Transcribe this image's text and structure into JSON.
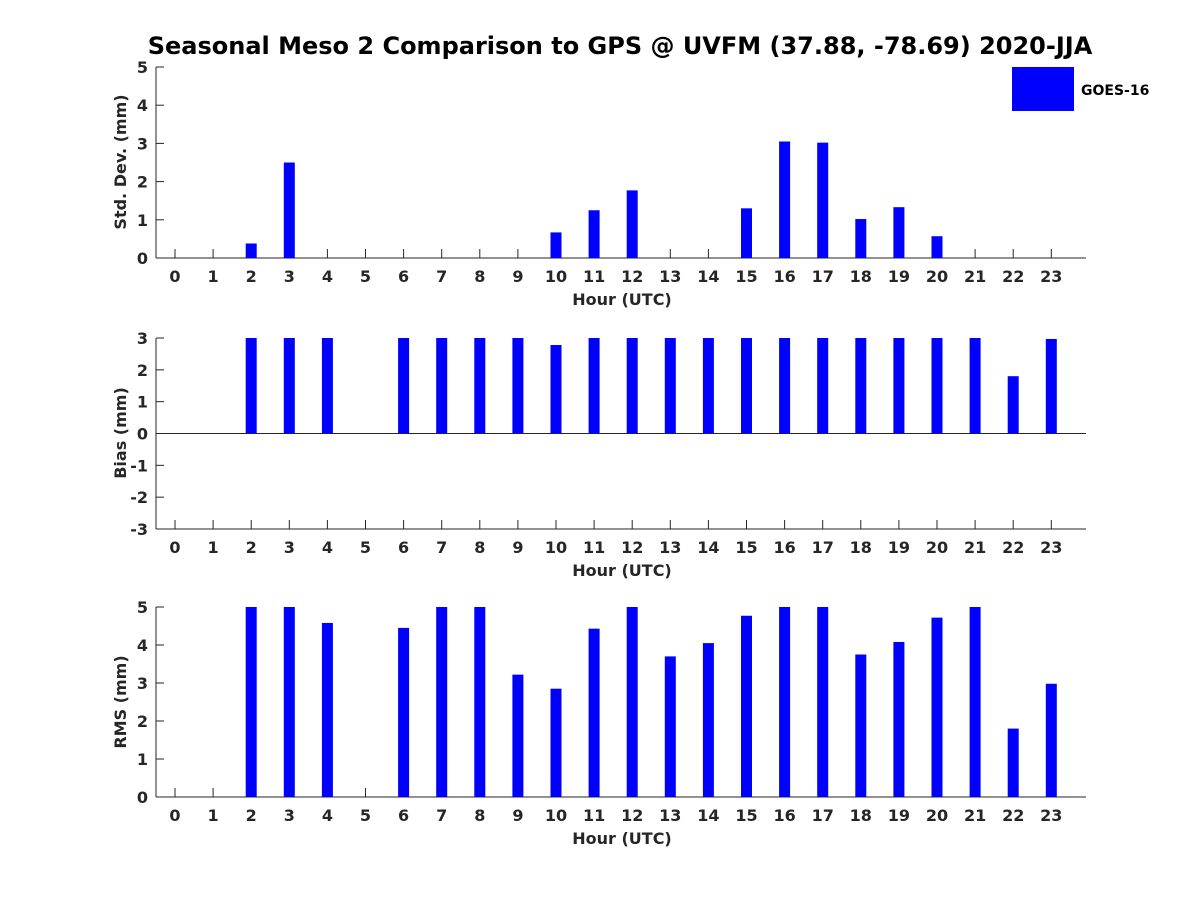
{
  "chart_data": {
    "title": "Seasonal Meso 2 Comparison to GPS @ UVFM (37.88, -78.69) 2020-JJA",
    "legend": {
      "label": "GOES-16",
      "color": "#0000ff",
      "position": "top-right"
    },
    "panels": [
      {
        "type": "bar",
        "xlabel": "Hour (UTC)",
        "ylabel": "Std. Dev. (mm)",
        "ylim": [
          0,
          5
        ],
        "yticks": [
          "0",
          "1",
          "2",
          "3",
          "4",
          "5"
        ],
        "categories": [
          "0",
          "1",
          "2",
          "3",
          "4",
          "5",
          "6",
          "7",
          "8",
          "9",
          "10",
          "11",
          "12",
          "13",
          "14",
          "15",
          "16",
          "17",
          "18",
          "19",
          "20",
          "21",
          "22",
          "23"
        ],
        "values": [
          null,
          null,
          0.38,
          2.5,
          null,
          null,
          null,
          null,
          null,
          null,
          0.67,
          1.25,
          1.77,
          null,
          null,
          1.3,
          3.05,
          3.02,
          1.02,
          1.33,
          0.57,
          null,
          null,
          null
        ]
      },
      {
        "type": "bar",
        "xlabel": "Hour (UTC)",
        "ylabel": "Bias (mm)",
        "ylim": [
          -3,
          3
        ],
        "yticks": [
          "-3",
          "-2",
          "-1",
          "0",
          "1",
          "2",
          "3"
        ],
        "categories": [
          "0",
          "1",
          "2",
          "3",
          "4",
          "5",
          "6",
          "7",
          "8",
          "9",
          "10",
          "11",
          "12",
          "13",
          "14",
          "15",
          "16",
          "17",
          "18",
          "19",
          "20",
          "21",
          "22",
          "23"
        ],
        "values": [
          null,
          null,
          3,
          3,
          3,
          null,
          3,
          3,
          3,
          3,
          2.78,
          3,
          3,
          3,
          3,
          3,
          3,
          3,
          3,
          3,
          3,
          3,
          1.8,
          2.97
        ]
      },
      {
        "type": "bar",
        "xlabel": "Hour (UTC)",
        "ylabel": "RMS (mm)",
        "ylim": [
          0,
          5
        ],
        "yticks": [
          "0",
          "1",
          "2",
          "3",
          "4",
          "5"
        ],
        "categories": [
          "0",
          "1",
          "2",
          "3",
          "4",
          "5",
          "6",
          "7",
          "8",
          "9",
          "10",
          "11",
          "12",
          "13",
          "14",
          "15",
          "16",
          "17",
          "18",
          "19",
          "20",
          "21",
          "22",
          "23"
        ],
        "values": [
          null,
          null,
          5,
          5,
          4.58,
          null,
          4.45,
          5,
          5,
          3.22,
          2.85,
          4.43,
          5,
          3.7,
          4.05,
          4.77,
          5,
          5,
          3.75,
          4.08,
          4.72,
          5,
          1.8,
          2.98
        ]
      }
    ]
  }
}
